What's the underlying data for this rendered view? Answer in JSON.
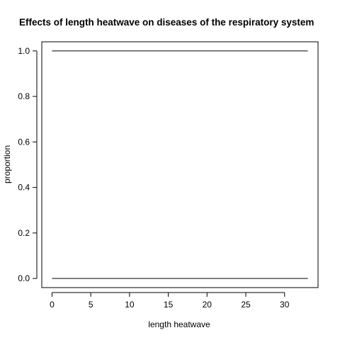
{
  "chart_data": {
    "type": "line",
    "title": "Effects of length heatwave on diseases of the respiratory system",
    "xlabel": "length heatwave",
    "ylabel": "proportion",
    "xlim": [
      -1.32,
      34.32
    ],
    "ylim": [
      -0.04,
      1.04
    ],
    "x_ticks": [
      0,
      5,
      10,
      15,
      20,
      25,
      30
    ],
    "y_ticks": [
      0.0,
      0.2,
      0.4,
      0.6,
      0.8,
      1.0
    ],
    "x_tick_labels": [
      "0",
      "5",
      "10",
      "15",
      "20",
      "25",
      "30"
    ],
    "y_tick_labels": [
      "0.0",
      "0.2",
      "0.4",
      "0.6",
      "0.8",
      "1.0"
    ],
    "grid": false,
    "legend": "none",
    "series": [
      {
        "x": [
          0,
          33
        ],
        "y": [
          1.0,
          1.0
        ]
      },
      {
        "x": [
          0,
          33
        ],
        "y": [
          0.0,
          0.0
        ]
      }
    ],
    "line_color": "#000000"
  }
}
